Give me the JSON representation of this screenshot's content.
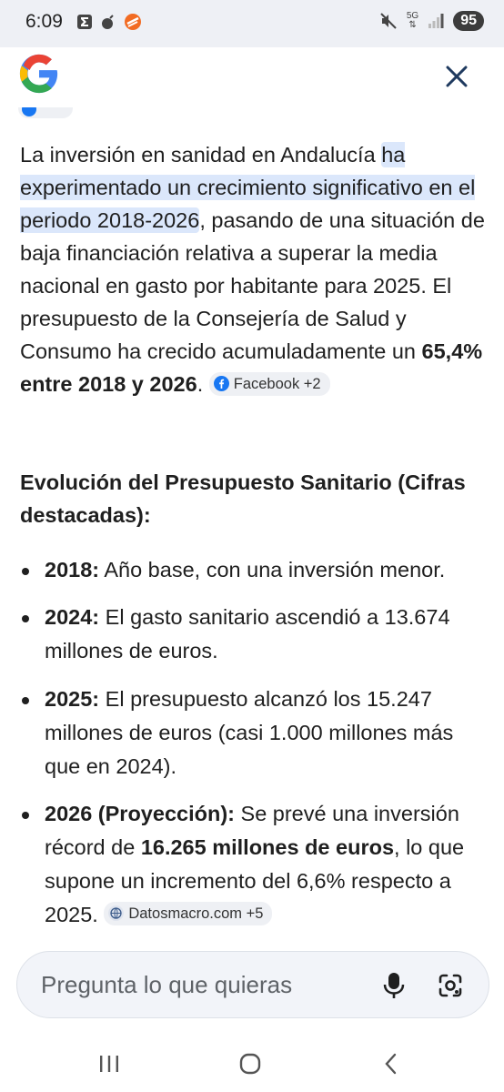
{
  "status_bar": {
    "time": "6:09",
    "network": "5G",
    "battery": "95"
  },
  "header": {
    "logo": "google-logo",
    "close_icon": "close-icon"
  },
  "answer": {
    "intro_pre": "La inversión en sanidad en Andalucía ",
    "intro_highlight": "ha experimentado un crecimiento significativo en el periodo 2018-2026",
    "intro_post": ", pasando de una situación de baja financiación relativa a superar la media nacional en gasto por habitante para 2025. El presupuesto de la Consejería de Salud y Consumo ha crecido acumuladamente un ",
    "intro_bold": "65,4% entre 2018 y 2026",
    "intro_end": ".",
    "source_chip_1": "Facebook +2",
    "section_title": "Evolución del Presupuesto Sanitario (Cifras destacadas):",
    "items": [
      {
        "year": "2018:",
        "text": " Año base, con una inversión menor."
      },
      {
        "year": "2024:",
        "text": " El gasto sanitario ascendió a 13.674 millones de euros."
      },
      {
        "year": "2025:",
        "text": " El presupuesto alcanzó los 15.247 millones de euros (casi 1.000 millones más que en 2024)."
      },
      {
        "year": "2026 (Proyección):",
        "text_pre": " Se prevé una inversión récord de ",
        "text_bold": "16.265 millones de euros",
        "text_post": ", lo que supone un incremento del 6,6% respecto a 2025."
      }
    ],
    "source_chip_2": "Datosmacro.com +5"
  },
  "search": {
    "placeholder": "Pregunta lo que quieras"
  },
  "colors": {
    "highlight": "#dbe7fb",
    "facebook": "#1877f2",
    "chip_bg": "#eef0f4",
    "searchbar_bg": "#f2f4f9"
  }
}
